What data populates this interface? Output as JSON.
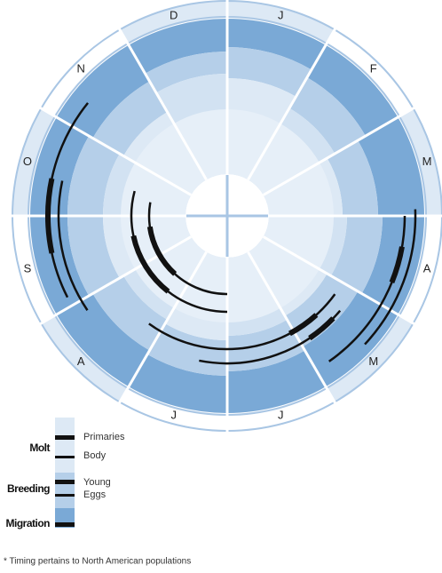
{
  "months": [
    "J",
    "F",
    "M",
    "A",
    "M",
    "J",
    "J",
    "A",
    "S",
    "O",
    "N",
    "D"
  ],
  "legend": {
    "groups": [
      {
        "label": "Molt",
        "items": [
          "Primaries",
          "Body"
        ]
      },
      {
        "label": "Breeding",
        "items": [
          "Young",
          "Eggs"
        ]
      },
      {
        "label": "Migration",
        "items": []
      }
    ]
  },
  "footnote": "* Timing pertains to North American populations"
}
